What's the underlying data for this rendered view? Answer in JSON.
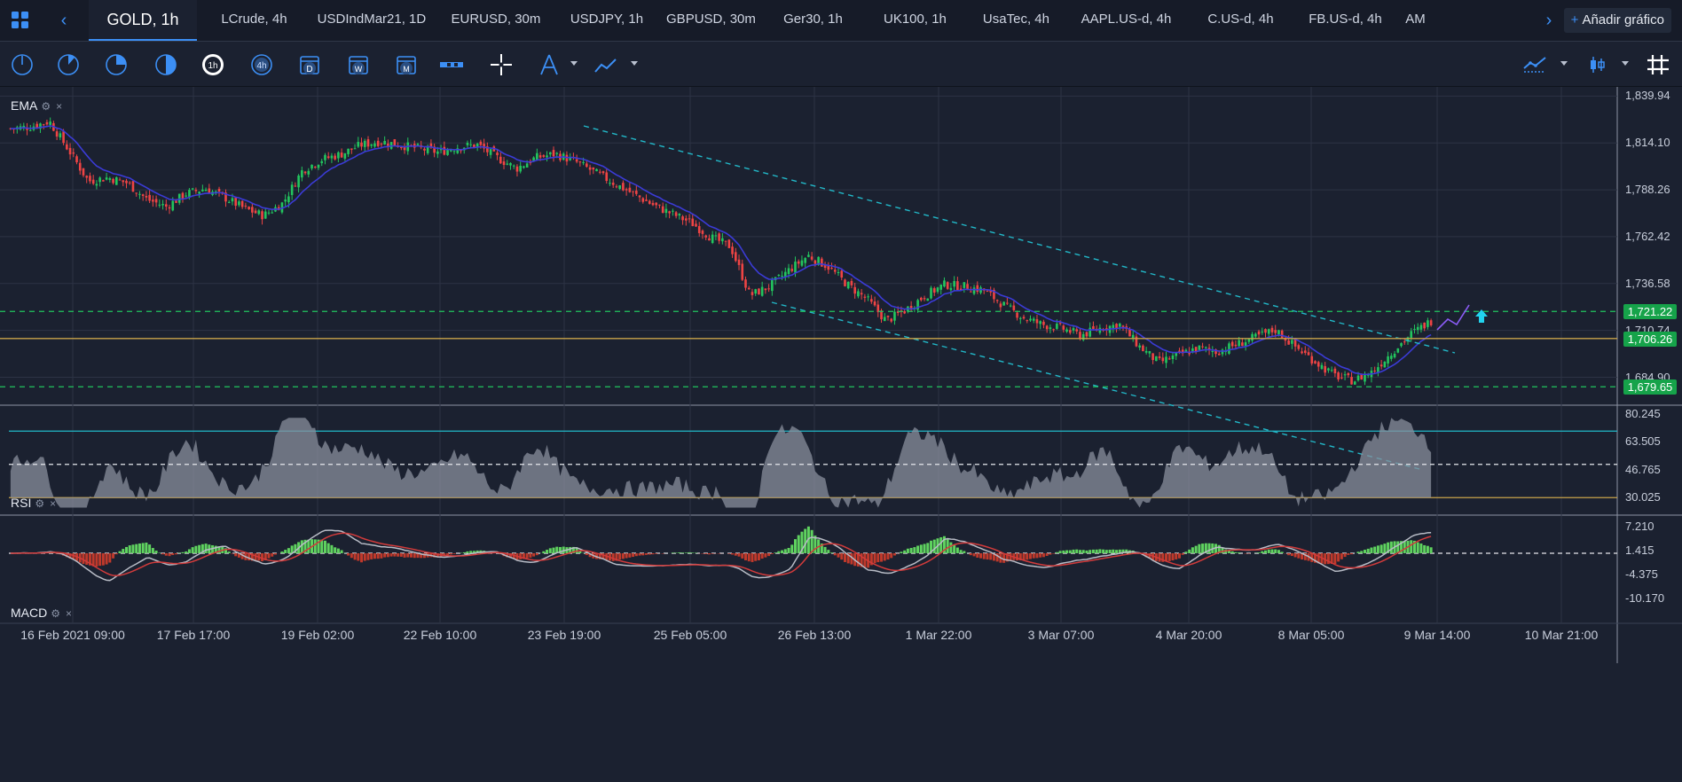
{
  "tabbar": {
    "active_tab": "GOLD, 1h",
    "tabs": [
      "LCrude, 4h",
      "USDIndMar21, 1D",
      "EURUSD, 30m",
      "USDJPY, 1h",
      "GBPUSD, 30m",
      "Ger30, 1h",
      "UK100, 1h",
      "UsaTec, 4h",
      "AAPL.US-d, 4h",
      "C.US-d, 4h",
      "FB.US-d, 4h",
      "AM"
    ],
    "add_chart_label": "Añadir gráfico"
  },
  "toolbar": {
    "tools": [
      "clock-15-icon",
      "clock-30-icon",
      "clock-45-icon",
      "clock-half-icon",
      "timeframe-1h-icon",
      "timeframe-4h-icon",
      "calendar-day-icon",
      "calendar-week-icon",
      "calendar-month-icon",
      "range-bars-icon",
      "crosshair-icon",
      "drawing-tools-icon",
      "trend-line-icon"
    ],
    "right_tools": [
      "chart-type-line-icon",
      "chart-style-candles-icon",
      "grid-icon"
    ],
    "timeframe_labels": {
      "h1": "1h",
      "h4": "4h",
      "day": "D",
      "week": "W",
      "month": "M"
    }
  },
  "panes": {
    "ema": {
      "label": "EMA"
    },
    "rsi": {
      "label": "RSI"
    },
    "macd": {
      "label": "MACD"
    }
  },
  "price_axis": {
    "ticks": [
      "1,839.94",
      "1,814.10",
      "1,788.26",
      "1,762.42",
      "1,736.58",
      "1,710.74",
      "1,684.90"
    ],
    "tags": {
      "resistance": {
        "text": "1,721.22",
        "bg": "#16a34a"
      },
      "last": {
        "text": "1,706.26",
        "bg": "#16a34a"
      },
      "support": {
        "text": "1,679.65",
        "bg": "#16a34a"
      }
    }
  },
  "rsi_axis": {
    "ticks": [
      "80.245",
      "63.505",
      "46.765",
      "30.025"
    ]
  },
  "macd_axis": {
    "ticks": [
      "7.210",
      "1.415",
      "-4.375",
      "-10.170"
    ]
  },
  "time_axis": [
    "16 Feb 2021 09:00",
    "17 Feb 17:00",
    "19 Feb 02:00",
    "22 Feb 10:00",
    "23 Feb 19:00",
    "25 Feb 05:00",
    "26 Feb 13:00",
    "1 Mar 22:00",
    "3 Mar 07:00",
    "4 Mar 20:00",
    "8 Mar 05:00",
    "9 Mar 14:00",
    "10 Mar 21:00"
  ],
  "chart_data": {
    "type": "candlestick",
    "symbol": "GOLD",
    "interval": "1h",
    "ylim": [
      1670,
      1845
    ],
    "close_path": [
      1822,
      1823,
      1826,
      1810,
      1793,
      1795,
      1792,
      1783,
      1779,
      1786,
      1789,
      1784,
      1778,
      1774,
      1781,
      1799,
      1805,
      1808,
      1813,
      1815,
      1813,
      1811,
      1809,
      1812,
      1813,
      1806,
      1800,
      1806,
      1808,
      1804,
      1798,
      1792,
      1786,
      1780,
      1775,
      1770,
      1762,
      1757,
      1730,
      1735,
      1744,
      1752,
      1746,
      1736,
      1728,
      1716,
      1722,
      1730,
      1736,
      1735,
      1733,
      1725,
      1718,
      1714,
      1712,
      1708,
      1712,
      1714,
      1702,
      1693,
      1697,
      1701,
      1699,
      1703,
      1707,
      1711,
      1702,
      1694,
      1686,
      1683,
      1688,
      1699,
      1709,
      1716
    ],
    "levels": {
      "resistance": 1721.22,
      "last": 1706.26,
      "support": 1679.65
    },
    "colors": {
      "up": "#22c55e",
      "down": "#ef4444",
      "ema": "#3b3bd6",
      "channel": "#22b8c8",
      "level": "#22c55e",
      "last_line": "#c9a34a",
      "projection": "#8b5cf6",
      "arrow": "#22d3ee"
    }
  }
}
